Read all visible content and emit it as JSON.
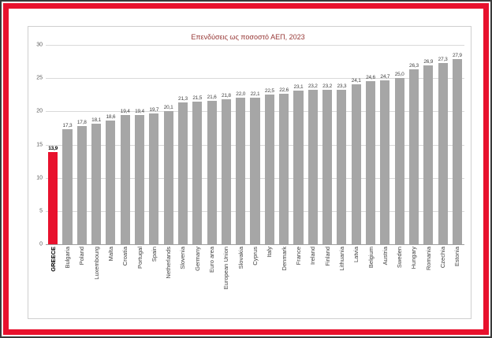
{
  "frame": {
    "color": "#e8112d",
    "outer_edge_color": "#3a3a3a"
  },
  "chart_data": {
    "type": "bar",
    "title": "Επενδύσεις ως ποσοστό ΑΕΠ, 2023",
    "xlabel": "",
    "ylabel": "",
    "ylim": [
      0,
      30
    ],
    "yticks": [
      0,
      5,
      10,
      15,
      20,
      25,
      30
    ],
    "grid": true,
    "legend": "none",
    "bar_color": "#a6a6a6",
    "highlight_color": "#e8112d",
    "highlight_index": 0,
    "categories": [
      "GREECE",
      "Bulgaria",
      "Poland",
      "Luxembourg",
      "Malta",
      "Croatia",
      "Portugal",
      "Spain",
      "Netherlands",
      "Slovenia",
      "Germany",
      "Euro area",
      "European Union",
      "Slovakia",
      "Cyprus",
      "Italy",
      "Denmark",
      "France",
      "Ireland",
      "Finland",
      "Lithuania",
      "Latvia",
      "Belgium",
      "Austria",
      "Sweden",
      "Hungary",
      "Romania",
      "Czechia",
      "Estonia"
    ],
    "values": [
      13.9,
      17.3,
      17.8,
      18.1,
      18.6,
      19.4,
      19.4,
      19.7,
      20.1,
      21.3,
      21.5,
      21.6,
      21.8,
      22.0,
      22.1,
      22.5,
      22.6,
      23.1,
      23.2,
      23.2,
      23.3,
      24.1,
      24.6,
      24.7,
      25.0,
      26.3,
      26.9,
      27.3,
      27.9
    ],
    "value_labels": [
      "13,9",
      "17,3",
      "17,8",
      "18,1",
      "18,6",
      "19,4",
      "19,4",
      "19,7",
      "20,1",
      "21,3",
      "21,5",
      "21,6",
      "21,8",
      "22,0",
      "22,1",
      "22,5",
      "22,6",
      "23,1",
      "23,2",
      "23,2",
      "23,3",
      "24,1",
      "24,6",
      "24,7",
      "25,0",
      "26,3",
      "26,9",
      "27,3",
      "27,9"
    ]
  }
}
